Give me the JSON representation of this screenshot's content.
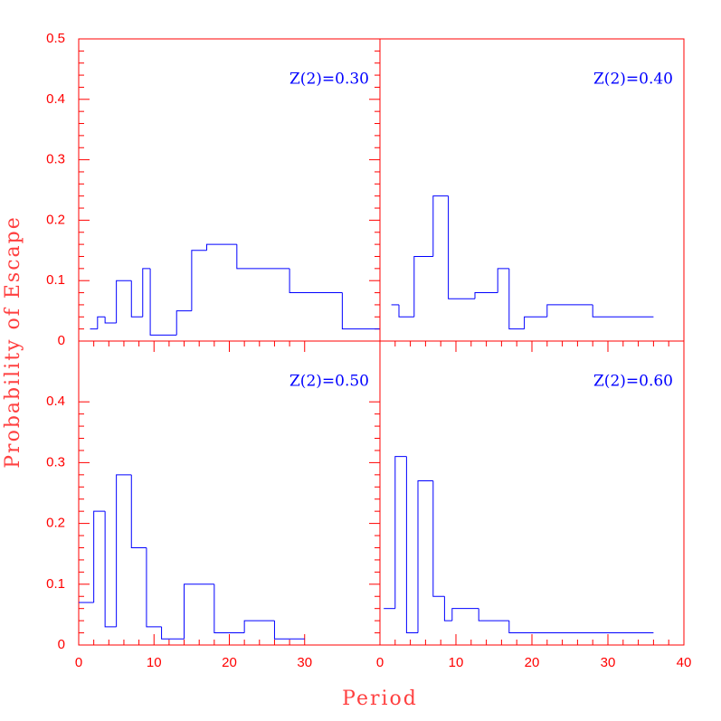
{
  "x_label": "Period",
  "y_label": "Probability of Escape",
  "chart_data": [
    {
      "type": "histogram",
      "annotation": "Z(2)=0.30",
      "color": "#0000ff",
      "axis_color": "#ff0000",
      "bins": [
        1.5,
        2.5,
        3.5,
        5,
        7,
        8.5,
        9.5,
        13,
        15,
        17,
        21,
        28,
        35,
        40
      ],
      "values": [
        0.02,
        0.04,
        0.03,
        0.1,
        0.04,
        0.12,
        0.01,
        0.05,
        0.15,
        0.16,
        0.12,
        0.08,
        0.02
      ],
      "xlim": [
        0,
        40
      ],
      "ylim": [
        0,
        0.5
      ],
      "yticks": [
        0,
        0.1,
        0.2,
        0.3,
        0.4,
        0.5
      ]
    },
    {
      "type": "histogram",
      "annotation": "Z(2)=0.40",
      "color": "#0000ff",
      "axis_color": "#ff0000",
      "bins": [
        1.5,
        2.5,
        4.5,
        7,
        9,
        12.5,
        15.5,
        17,
        19,
        22,
        28,
        36
      ],
      "values": [
        0.06,
        0.04,
        0.14,
        0.24,
        0.07,
        0.08,
        0.12,
        0.02,
        0.04,
        0.06,
        0.04
      ],
      "xlim": [
        0,
        40
      ],
      "ylim": [
        0,
        0.5
      ]
    },
    {
      "type": "histogram",
      "annotation": "Z(2)=0.50",
      "color": "#0000ff",
      "axis_color": "#ff0000",
      "bins": [
        0,
        2,
        3.5,
        5,
        7,
        9,
        11,
        14,
        18,
        22,
        26,
        30
      ],
      "values": [
        0.07,
        0.22,
        0.03,
        0.28,
        0.16,
        0.03,
        0.01,
        0.1,
        0.02,
        0.04,
        0.01
      ],
      "xlim": [
        0,
        40
      ],
      "ylim": [
        0,
        0.5
      ],
      "xticks": [
        0,
        10,
        20,
        30
      ],
      "yticks": [
        0,
        0.1,
        0.2,
        0.3,
        0.4
      ]
    },
    {
      "type": "histogram",
      "annotation": "Z(2)=0.60",
      "color": "#0000ff",
      "axis_color": "#ff0000",
      "bins": [
        0.5,
        2,
        3.5,
        5,
        7,
        8.5,
        9.5,
        13,
        17,
        36
      ],
      "values": [
        0.06,
        0.31,
        0.02,
        0.27,
        0.08,
        0.04,
        0.06,
        0.04,
        0.02
      ],
      "xlim": [
        0,
        40
      ],
      "ylim": [
        0,
        0.5
      ],
      "xticks": [
        0,
        10,
        20,
        30,
        40
      ]
    }
  ]
}
